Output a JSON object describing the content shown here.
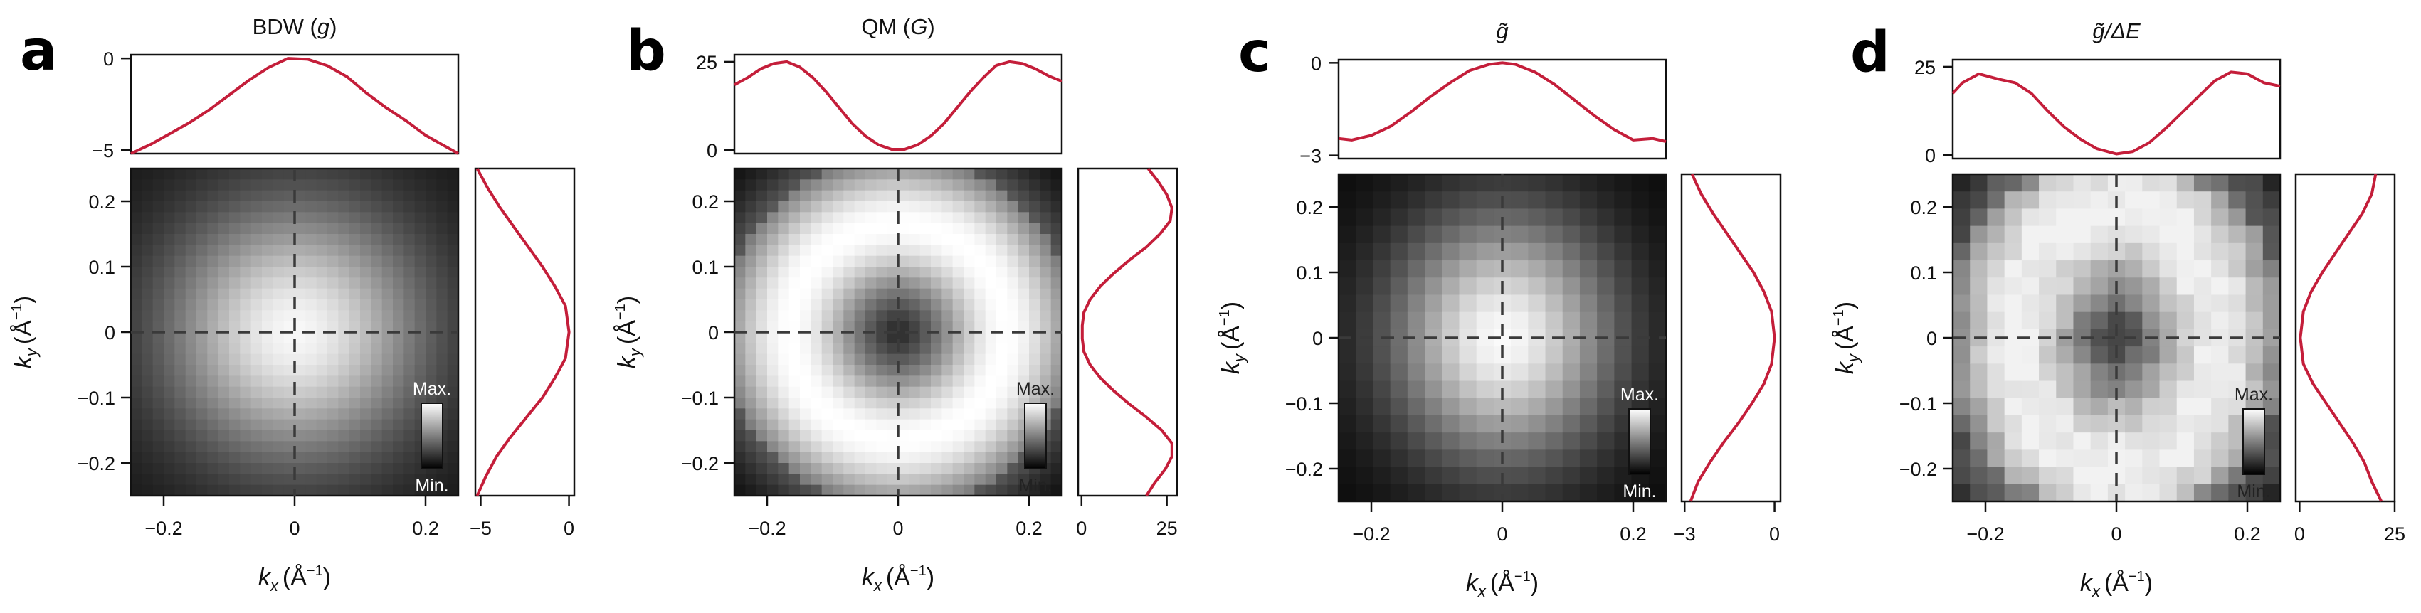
{
  "figure": {
    "line_color": "#c41e3a",
    "dash_color": "#3a3a3a",
    "colorbar_labels": {
      "max": "Max.",
      "min": "Min."
    },
    "kx_label": "k",
    "kx_sub": "x",
    "ky_label": "k",
    "ky_sub": "y",
    "unit": "(Å",
    "unit_exp": "−1",
    "unit_close": ")"
  },
  "chart_data": [
    {
      "type": "heatmap",
      "panel_letter": "a",
      "title": "BDW (g)",
      "title_parts": [
        "BDW (",
        "g",
        ")"
      ],
      "xlabel": "kx (Å−1)",
      "ylabel": "ky (Å−1)",
      "xlim": [
        -0.25,
        0.25
      ],
      "ylim": [
        -0.25,
        0.25
      ],
      "xticks": [
        -0.2,
        0,
        0.2
      ],
      "yticks": [
        -0.2,
        -0.1,
        0,
        0.1,
        0.2
      ],
      "xtick_labels": [
        "−0.2",
        "0",
        "0.2"
      ],
      "ytick_labels": [
        "−0.2",
        "−0.1",
        "0",
        "0.1",
        "0.2"
      ],
      "grid_cells": 30,
      "colormap": "gray",
      "model": {
        "kind": "gaussian",
        "sigma_x": 0.14,
        "sigma_y": 0.14,
        "min_level": 0.07,
        "max_level": 0.97
      },
      "colorbar": {
        "position": "bottom-right",
        "max": "Max.",
        "min": "Min.",
        "label_color": "#ffffff"
      },
      "top_profile": {
        "ylim": [
          -5.2,
          0.2
        ],
        "yticks": [
          0,
          -5
        ],
        "ytick_labels": [
          "0",
          "−5"
        ],
        "x": [
          -0.25,
          -0.22,
          -0.19,
          -0.16,
          -0.13,
          -0.1,
          -0.07,
          -0.04,
          -0.01,
          0.02,
          0.05,
          0.08,
          0.11,
          0.14,
          0.17,
          0.2,
          0.23,
          0.25
        ],
        "y": [
          -5.2,
          -4.7,
          -4.1,
          -3.5,
          -2.8,
          -2.0,
          -1.2,
          -0.5,
          0.0,
          -0.05,
          -0.4,
          -1.0,
          -1.9,
          -2.7,
          -3.4,
          -4.2,
          -4.8,
          -5.2
        ]
      },
      "side_profile": {
        "xlim": [
          -5.3,
          0.3
        ],
        "xticks": [
          -5,
          0
        ],
        "xtick_labels": [
          "−5",
          "0"
        ],
        "ky": [
          0.25,
          0.22,
          0.19,
          0.16,
          0.13,
          0.1,
          0.07,
          0.04,
          0.0,
          -0.04,
          -0.07,
          -0.1,
          -0.13,
          -0.16,
          -0.19,
          -0.22,
          -0.25
        ],
        "value": [
          -5.2,
          -4.6,
          -3.9,
          -3.1,
          -2.3,
          -1.5,
          -0.8,
          -0.2,
          0.0,
          -0.2,
          -0.8,
          -1.5,
          -2.4,
          -3.3,
          -4.1,
          -4.7,
          -5.2
        ]
      }
    },
    {
      "type": "heatmap",
      "panel_letter": "b",
      "title": "QM (G)",
      "title_parts": [
        "QM (",
        "G",
        ")"
      ],
      "xlabel": "kx (Å−1)",
      "ylabel": "ky (Å−1)",
      "xlim": [
        -0.25,
        0.25
      ],
      "ylim": [
        -0.25,
        0.25
      ],
      "xticks": [
        -0.2,
        0,
        0.2
      ],
      "yticks": [
        -0.2,
        -0.1,
        0,
        0.1,
        0.2
      ],
      "xtick_labels": [
        "−0.2",
        "0",
        "0.2"
      ],
      "ytick_labels": [
        "−0.2",
        "−0.1",
        "0",
        "0.1",
        "0.2"
      ],
      "grid_cells": 30,
      "colormap": "gray",
      "model": {
        "kind": "ring",
        "radius": 0.165,
        "width": 0.085,
        "sx": 1.0,
        "sy": 1.0,
        "min_level": 0.0,
        "max_level": 1.0
      },
      "colorbar": {
        "position": "bottom-right",
        "max": "Max.",
        "min": "Min.",
        "label_color": "#222222"
      },
      "top_profile": {
        "ylim": [
          -1,
          27
        ],
        "yticks": [
          25,
          0
        ],
        "ytick_labels": [
          "25",
          "0"
        ],
        "x": [
          -0.25,
          -0.23,
          -0.21,
          -0.19,
          -0.17,
          -0.15,
          -0.13,
          -0.11,
          -0.09,
          -0.07,
          -0.05,
          -0.03,
          -0.01,
          0.01,
          0.03,
          0.05,
          0.07,
          0.09,
          0.11,
          0.13,
          0.15,
          0.17,
          0.19,
          0.21,
          0.23,
          0.25
        ],
        "y": [
          18.5,
          20.5,
          23.0,
          24.5,
          25.0,
          23.5,
          20.5,
          16.5,
          12.0,
          7.5,
          4.0,
          1.5,
          0.2,
          0.2,
          1.5,
          4.0,
          7.5,
          12.0,
          16.5,
          20.5,
          24.0,
          25.0,
          24.5,
          23.0,
          21.0,
          19.5
        ]
      },
      "side_profile": {
        "xlim": [
          -1,
          28
        ],
        "xticks": [
          0,
          25
        ],
        "xtick_labels": [
          "0",
          "25"
        ],
        "ky": [
          0.25,
          0.23,
          0.21,
          0.19,
          0.17,
          0.15,
          0.13,
          0.11,
          0.09,
          0.07,
          0.05,
          0.03,
          0.01,
          -0.01,
          -0.03,
          -0.05,
          -0.07,
          -0.09,
          -0.11,
          -0.13,
          -0.15,
          -0.17,
          -0.19,
          -0.21,
          -0.23,
          -0.25
        ],
        "value": [
          19.5,
          22.5,
          25.0,
          26.5,
          26.0,
          23.0,
          19.0,
          14.0,
          9.5,
          5.5,
          2.5,
          0.7,
          0.2,
          0.2,
          0.7,
          2.5,
          5.5,
          9.5,
          14.0,
          19.0,
          23.5,
          26.5,
          26.5,
          24.5,
          21.5,
          19.0
        ]
      }
    },
    {
      "type": "heatmap",
      "panel_letter": "c",
      "title": "g̃",
      "title_parts": [
        "",
        "g̃",
        ""
      ],
      "xlabel": "kx (Å−1)",
      "ylabel": "ky (Å−1)",
      "xlim": [
        -0.25,
        0.25
      ],
      "ylim": [
        -0.25,
        0.25
      ],
      "xticks": [
        -0.2,
        0,
        0.2
      ],
      "yticks": [
        -0.2,
        -0.1,
        0,
        0.1,
        0.2
      ],
      "xtick_labels": [
        "−0.2",
        "0",
        "0.2"
      ],
      "ytick_labels": [
        "−0.2",
        "−0.1",
        "0",
        "0.1",
        "0.2"
      ],
      "grid_cells": 19,
      "colormap": "gray",
      "model": {
        "kind": "gaussian",
        "sigma_x": 0.12,
        "sigma_y": 0.135,
        "min_level": 0.03,
        "max_level": 0.98
      },
      "colorbar": {
        "position": "bottom-right",
        "max": "Max.",
        "min": "Min.",
        "label_color": "#ffffff"
      },
      "top_profile": {
        "ylim": [
          -3.1,
          0.1
        ],
        "yticks": [
          0,
          -3
        ],
        "ytick_labels": [
          "0",
          "−3"
        ],
        "x": [
          -0.25,
          -0.23,
          -0.2,
          -0.17,
          -0.14,
          -0.11,
          -0.08,
          -0.05,
          -0.02,
          0.0,
          0.02,
          0.05,
          0.08,
          0.11,
          0.14,
          0.17,
          0.2,
          0.23,
          0.25
        ],
        "y": [
          -2.45,
          -2.5,
          -2.35,
          -2.05,
          -1.6,
          -1.1,
          -0.65,
          -0.25,
          -0.05,
          0.0,
          -0.05,
          -0.3,
          -0.7,
          -1.2,
          -1.7,
          -2.15,
          -2.5,
          -2.45,
          -2.55
        ]
      },
      "side_profile": {
        "xlim": [
          -3.1,
          0.2
        ],
        "xticks": [
          -3,
          0
        ],
        "xtick_labels": [
          "−3",
          "0"
        ],
        "ky": [
          0.25,
          0.22,
          0.19,
          0.16,
          0.13,
          0.1,
          0.07,
          0.04,
          0.0,
          -0.04,
          -0.07,
          -0.1,
          -0.13,
          -0.16,
          -0.19,
          -0.22,
          -0.25
        ],
        "value": [
          -2.75,
          -2.45,
          -2.05,
          -1.6,
          -1.15,
          -0.7,
          -0.35,
          -0.1,
          0.0,
          -0.1,
          -0.35,
          -0.75,
          -1.2,
          -1.7,
          -2.15,
          -2.55,
          -2.8
        ]
      }
    },
    {
      "type": "heatmap",
      "panel_letter": "d",
      "title": "g̃/ΔE",
      "title_parts": [
        "",
        "g̃/ΔE",
        ""
      ],
      "xlabel": "kx (Å−1)",
      "ylabel": "ky (Å−1)",
      "xlim": [
        -0.25,
        0.25
      ],
      "ylim": [
        -0.25,
        0.25
      ],
      "xticks": [
        -0.2,
        0,
        0.2
      ],
      "yticks": [
        -0.2,
        -0.1,
        0,
        0.1,
        0.2
      ],
      "xtick_labels": [
        "−0.2",
        "0",
        "0.2"
      ],
      "ytick_labels": [
        "−0.2",
        "−0.1",
        "0",
        "0.1",
        "0.2"
      ],
      "grid_cells": 19,
      "colormap": "gray",
      "model": {
        "kind": "ring",
        "radius": 0.19,
        "width": 0.11,
        "sx": 1.25,
        "sy": 0.95,
        "min_level": 0.02,
        "max_level": 0.95,
        "noise": 0.06
      },
      "colorbar": {
        "position": "bottom-right",
        "max": "Max.",
        "min": "Min.",
        "label_color": "#222222"
      },
      "top_profile": {
        "ylim": [
          -1,
          27
        ],
        "yticks": [
          25,
          0
        ],
        "ytick_labels": [
          "25",
          "0"
        ],
        "x": [
          -0.25,
          -0.235,
          -0.21,
          -0.18,
          -0.155,
          -0.13,
          -0.105,
          -0.08,
          -0.055,
          -0.03,
          0.0,
          0.025,
          0.05,
          0.075,
          0.1,
          0.125,
          0.15,
          0.175,
          0.2,
          0.225,
          0.25
        ],
        "y": [
          17.5,
          20.5,
          23.0,
          21.5,
          20.5,
          17.5,
          12.5,
          8.0,
          4.5,
          1.8,
          0.3,
          1.0,
          3.5,
          7.5,
          12.0,
          16.5,
          21.0,
          23.5,
          23.0,
          20.5,
          19.5
        ]
      },
      "side_profile": {
        "xlim": [
          -1,
          25
        ],
        "xticks": [
          0,
          25
        ],
        "xtick_labels": [
          "0",
          "25"
        ],
        "ky": [
          0.25,
          0.22,
          0.19,
          0.16,
          0.13,
          0.1,
          0.07,
          0.04,
          0.0,
          -0.04,
          -0.07,
          -0.1,
          -0.13,
          -0.16,
          -0.19,
          -0.22,
          -0.25
        ],
        "value": [
          20.0,
          19.0,
          16.5,
          13.0,
          9.5,
          6.0,
          3.0,
          1.0,
          0.2,
          1.0,
          3.5,
          7.0,
          10.5,
          14.0,
          17.0,
          19.0,
          21.5
        ]
      }
    }
  ]
}
